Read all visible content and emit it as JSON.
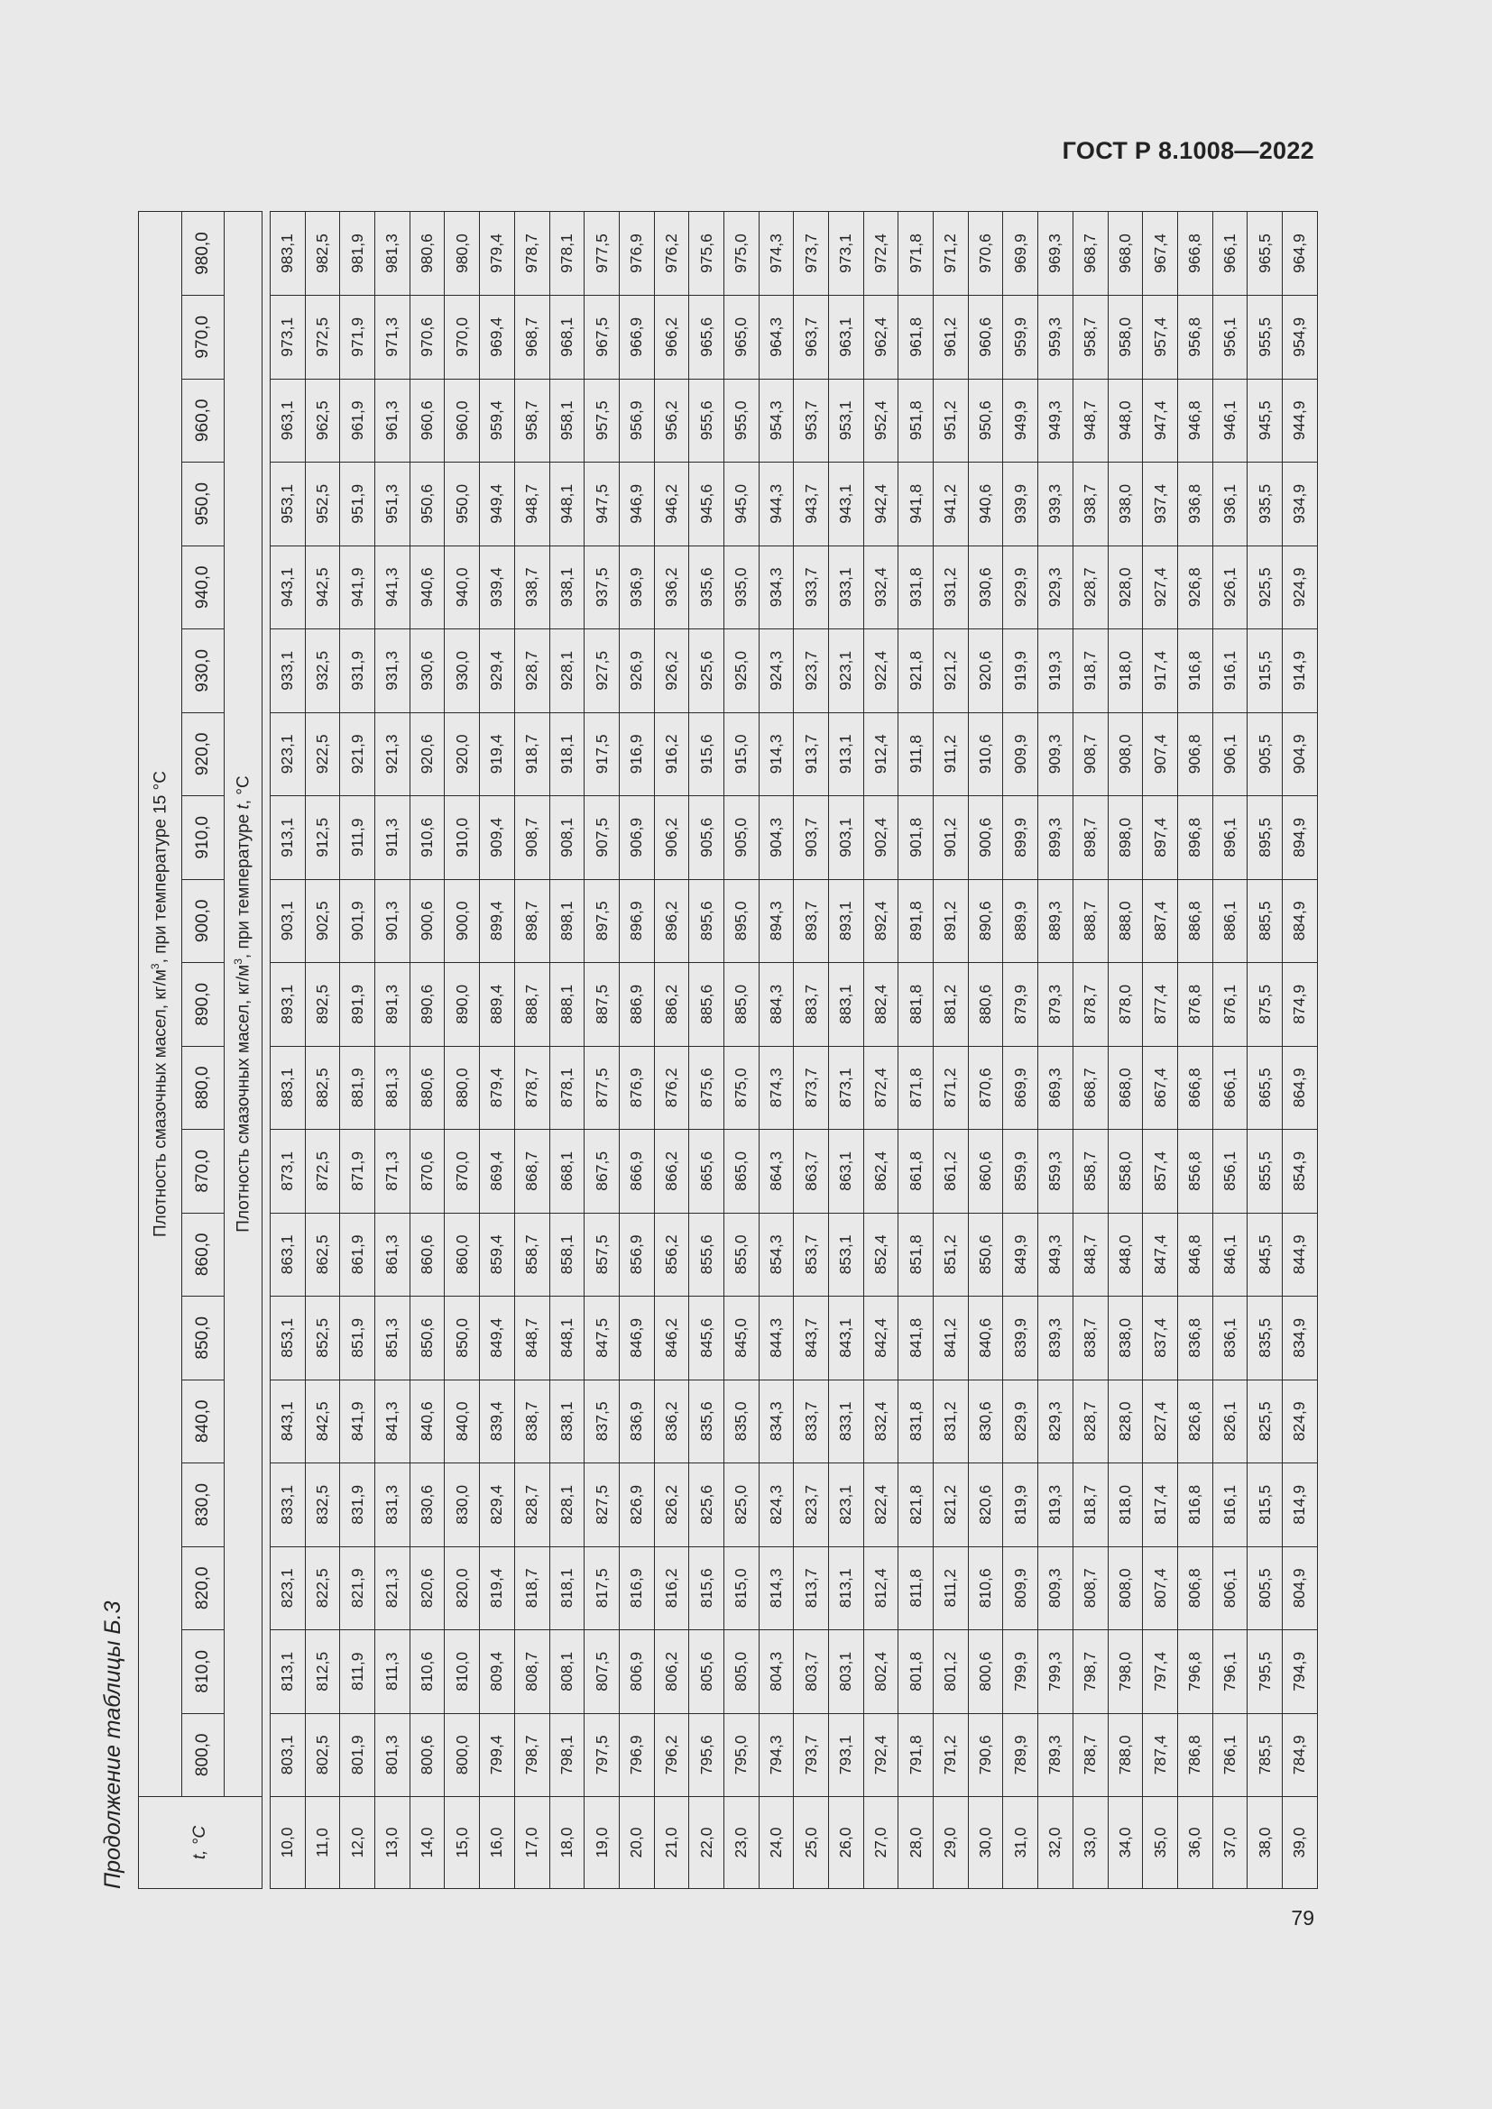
{
  "document": {
    "standard": "ГОСТ Р 8.1008—2022",
    "page_number": "79",
    "caption": "Продолжение таблицы Б.3"
  },
  "table": {
    "col_header": "t, °C",
    "group_header_1": "Плотность смазочных масел, кг/м3, при температуре 15 °C",
    "group_header_2": "Плотность смазочных масел, кг/м3, при температуре t, °C",
    "density_columns": [
      "800,0",
      "810,0",
      "820,0",
      "830,0",
      "840,0",
      "850,0",
      "860,0",
      "870,0",
      "880,0",
      "890,0",
      "900,0",
      "910,0",
      "920,0",
      "930,0",
      "940,0",
      "950,0",
      "960,0",
      "970,0",
      "980,0"
    ],
    "rows": [
      {
        "t": "10,0",
        "v": [
          "803,1",
          "813,1",
          "823,1",
          "833,1",
          "843,1",
          "853,1",
          "863,1",
          "873,1",
          "883,1",
          "893,1",
          "903,1",
          "913,1",
          "923,1",
          "933,1",
          "943,1",
          "953,1",
          "963,1",
          "973,1",
          "983,1"
        ]
      },
      {
        "t": "11,0",
        "v": [
          "802,5",
          "812,5",
          "822,5",
          "832,5",
          "842,5",
          "852,5",
          "862,5",
          "872,5",
          "882,5",
          "892,5",
          "902,5",
          "912,5",
          "922,5",
          "932,5",
          "942,5",
          "952,5",
          "962,5",
          "972,5",
          "982,5"
        ]
      },
      {
        "t": "12,0",
        "v": [
          "801,9",
          "811,9",
          "821,9",
          "831,9",
          "841,9",
          "851,9",
          "861,9",
          "871,9",
          "881,9",
          "891,9",
          "901,9",
          "911,9",
          "921,9",
          "931,9",
          "941,9",
          "951,9",
          "961,9",
          "971,9",
          "981,9"
        ]
      },
      {
        "t": "13,0",
        "v": [
          "801,3",
          "811,3",
          "821,3",
          "831,3",
          "841,3",
          "851,3",
          "861,3",
          "871,3",
          "881,3",
          "891,3",
          "901,3",
          "911,3",
          "921,3",
          "931,3",
          "941,3",
          "951,3",
          "961,3",
          "971,3",
          "981,3"
        ]
      },
      {
        "t": "14,0",
        "v": [
          "800,6",
          "810,6",
          "820,6",
          "830,6",
          "840,6",
          "850,6",
          "860,6",
          "870,6",
          "880,6",
          "890,6",
          "900,6",
          "910,6",
          "920,6",
          "930,6",
          "940,6",
          "950,6",
          "960,6",
          "970,6",
          "980,6"
        ]
      },
      {
        "t": "15,0",
        "v": [
          "800,0",
          "810,0",
          "820,0",
          "830,0",
          "840,0",
          "850,0",
          "860,0",
          "870,0",
          "880,0",
          "890,0",
          "900,0",
          "910,0",
          "920,0",
          "930,0",
          "940,0",
          "950,0",
          "960,0",
          "970,0",
          "980,0"
        ]
      },
      {
        "t": "16,0",
        "v": [
          "799,4",
          "809,4",
          "819,4",
          "829,4",
          "839,4",
          "849,4",
          "859,4",
          "869,4",
          "879,4",
          "889,4",
          "899,4",
          "909,4",
          "919,4",
          "929,4",
          "939,4",
          "949,4",
          "959,4",
          "969,4",
          "979,4"
        ]
      },
      {
        "t": "17,0",
        "v": [
          "798,7",
          "808,7",
          "818,7",
          "828,7",
          "838,7",
          "848,7",
          "858,7",
          "868,7",
          "878,7",
          "888,7",
          "898,7",
          "908,7",
          "918,7",
          "928,7",
          "938,7",
          "948,7",
          "958,7",
          "968,7",
          "978,7"
        ]
      },
      {
        "t": "18,0",
        "v": [
          "798,1",
          "808,1",
          "818,1",
          "828,1",
          "838,1",
          "848,1",
          "858,1",
          "868,1",
          "878,1",
          "888,1",
          "898,1",
          "908,1",
          "918,1",
          "928,1",
          "938,1",
          "948,1",
          "958,1",
          "968,1",
          "978,1"
        ]
      },
      {
        "t": "19,0",
        "v": [
          "797,5",
          "807,5",
          "817,5",
          "827,5",
          "837,5",
          "847,5",
          "857,5",
          "867,5",
          "877,5",
          "887,5",
          "897,5",
          "907,5",
          "917,5",
          "927,5",
          "937,5",
          "947,5",
          "957,5",
          "967,5",
          "977,5"
        ]
      },
      {
        "t": "20,0",
        "v": [
          "796,9",
          "806,9",
          "816,9",
          "826,9",
          "836,9",
          "846,9",
          "856,9",
          "866,9",
          "876,9",
          "886,9",
          "896,9",
          "906,9",
          "916,9",
          "926,9",
          "936,9",
          "946,9",
          "956,9",
          "966,9",
          "976,9"
        ]
      },
      {
        "t": "21,0",
        "v": [
          "796,2",
          "806,2",
          "816,2",
          "826,2",
          "836,2",
          "846,2",
          "856,2",
          "866,2",
          "876,2",
          "886,2",
          "896,2",
          "906,2",
          "916,2",
          "926,2",
          "936,2",
          "946,2",
          "956,2",
          "966,2",
          "976,2"
        ]
      },
      {
        "t": "22,0",
        "v": [
          "795,6",
          "805,6",
          "815,6",
          "825,6",
          "835,6",
          "845,6",
          "855,6",
          "865,6",
          "875,6",
          "885,6",
          "895,6",
          "905,6",
          "915,6",
          "925,6",
          "935,6",
          "945,6",
          "955,6",
          "965,6",
          "975,6"
        ]
      },
      {
        "t": "23,0",
        "v": [
          "795,0",
          "805,0",
          "815,0",
          "825,0",
          "835,0",
          "845,0",
          "855,0",
          "865,0",
          "875,0",
          "885,0",
          "895,0",
          "905,0",
          "915,0",
          "925,0",
          "935,0",
          "945,0",
          "955,0",
          "965,0",
          "975,0"
        ]
      },
      {
        "t": "24,0",
        "v": [
          "794,3",
          "804,3",
          "814,3",
          "824,3",
          "834,3",
          "844,3",
          "854,3",
          "864,3",
          "874,3",
          "884,3",
          "894,3",
          "904,3",
          "914,3",
          "924,3",
          "934,3",
          "944,3",
          "954,3",
          "964,3",
          "974,3"
        ]
      },
      {
        "t": "25,0",
        "v": [
          "793,7",
          "803,7",
          "813,7",
          "823,7",
          "833,7",
          "843,7",
          "853,7",
          "863,7",
          "873,7",
          "883,7",
          "893,7",
          "903,7",
          "913,7",
          "923,7",
          "933,7",
          "943,7",
          "953,7",
          "963,7",
          "973,7"
        ]
      },
      {
        "t": "26,0",
        "v": [
          "793,1",
          "803,1",
          "813,1",
          "823,1",
          "833,1",
          "843,1",
          "853,1",
          "863,1",
          "873,1",
          "883,1",
          "893,1",
          "903,1",
          "913,1",
          "923,1",
          "933,1",
          "943,1",
          "953,1",
          "963,1",
          "973,1"
        ]
      },
      {
        "t": "27,0",
        "v": [
          "792,4",
          "802,4",
          "812,4",
          "822,4",
          "832,4",
          "842,4",
          "852,4",
          "862,4",
          "872,4",
          "882,4",
          "892,4",
          "902,4",
          "912,4",
          "922,4",
          "932,4",
          "942,4",
          "952,4",
          "962,4",
          "972,4"
        ]
      },
      {
        "t": "28,0",
        "v": [
          "791,8",
          "801,8",
          "811,8",
          "821,8",
          "831,8",
          "841,8",
          "851,8",
          "861,8",
          "871,8",
          "881,8",
          "891,8",
          "901,8",
          "911,8",
          "921,8",
          "931,8",
          "941,8",
          "951,8",
          "961,8",
          "971,8"
        ]
      },
      {
        "t": "29,0",
        "v": [
          "791,2",
          "801,2",
          "811,2",
          "821,2",
          "831,2",
          "841,2",
          "851,2",
          "861,2",
          "871,2",
          "881,2",
          "891,2",
          "901,2",
          "911,2",
          "921,2",
          "931,2",
          "941,2",
          "951,2",
          "961,2",
          "971,2"
        ]
      },
      {
        "t": "30,0",
        "v": [
          "790,6",
          "800,6",
          "810,6",
          "820,6",
          "830,6",
          "840,6",
          "850,6",
          "860,6",
          "870,6",
          "880,6",
          "890,6",
          "900,6",
          "910,6",
          "920,6",
          "930,6",
          "940,6",
          "950,6",
          "960,6",
          "970,6"
        ]
      },
      {
        "t": "31,0",
        "v": [
          "789,9",
          "799,9",
          "809,9",
          "819,9",
          "829,9",
          "839,9",
          "849,9",
          "859,9",
          "869,9",
          "879,9",
          "889,9",
          "899,9",
          "909,9",
          "919,9",
          "929,9",
          "939,9",
          "949,9",
          "959,9",
          "969,9"
        ]
      },
      {
        "t": "32,0",
        "v": [
          "789,3",
          "799,3",
          "809,3",
          "819,3",
          "829,3",
          "839,3",
          "849,3",
          "859,3",
          "869,3",
          "879,3",
          "889,3",
          "899,3",
          "909,3",
          "919,3",
          "929,3",
          "939,3",
          "949,3",
          "959,3",
          "969,3"
        ]
      },
      {
        "t": "33,0",
        "v": [
          "788,7",
          "798,7",
          "808,7",
          "818,7",
          "828,7",
          "838,7",
          "848,7",
          "858,7",
          "868,7",
          "878,7",
          "888,7",
          "898,7",
          "908,7",
          "918,7",
          "928,7",
          "938,7",
          "948,7",
          "958,7",
          "968,7"
        ]
      },
      {
        "t": "34,0",
        "v": [
          "788,0",
          "798,0",
          "808,0",
          "818,0",
          "828,0",
          "838,0",
          "848,0",
          "858,0",
          "868,0",
          "878,0",
          "888,0",
          "898,0",
          "908,0",
          "918,0",
          "928,0",
          "938,0",
          "948,0",
          "958,0",
          "968,0"
        ]
      },
      {
        "t": "35,0",
        "v": [
          "787,4",
          "797,4",
          "807,4",
          "817,4",
          "827,4",
          "837,4",
          "847,4",
          "857,4",
          "867,4",
          "877,4",
          "887,4",
          "897,4",
          "907,4",
          "917,4",
          "927,4",
          "937,4",
          "947,4",
          "957,4",
          "967,4"
        ]
      },
      {
        "t": "36,0",
        "v": [
          "786,8",
          "796,8",
          "806,8",
          "816,8",
          "826,8",
          "836,8",
          "846,8",
          "856,8",
          "866,8",
          "876,8",
          "886,8",
          "896,8",
          "906,8",
          "916,8",
          "926,8",
          "936,8",
          "946,8",
          "956,8",
          "966,8"
        ]
      },
      {
        "t": "37,0",
        "v": [
          "786,1",
          "796,1",
          "806,1",
          "816,1",
          "826,1",
          "836,1",
          "846,1",
          "856,1",
          "866,1",
          "876,1",
          "886,1",
          "896,1",
          "906,1",
          "916,1",
          "926,1",
          "936,1",
          "946,1",
          "956,1",
          "966,1"
        ]
      },
      {
        "t": "38,0",
        "v": [
          "785,5",
          "795,5",
          "805,5",
          "815,5",
          "825,5",
          "835,5",
          "845,5",
          "855,5",
          "865,5",
          "875,5",
          "885,5",
          "895,5",
          "905,5",
          "915,5",
          "925,5",
          "935,5",
          "945,5",
          "955,5",
          "965,5"
        ]
      },
      {
        "t": "39,0",
        "v": [
          "784,9",
          "794,9",
          "804,9",
          "814,9",
          "824,9",
          "834,9",
          "844,9",
          "854,9",
          "864,9",
          "874,9",
          "884,9",
          "894,9",
          "904,9",
          "914,9",
          "924,9",
          "934,9",
          "944,9",
          "954,9",
          "964,9"
        ]
      }
    ]
  }
}
